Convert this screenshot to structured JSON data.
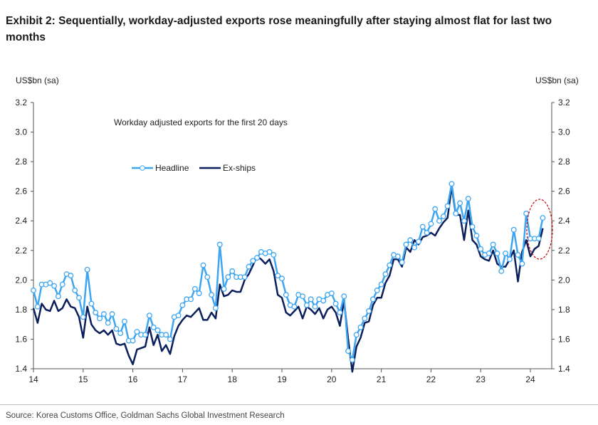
{
  "title": "Exhibit 2: Sequentially, workday-adjusted exports rose meaningfully after staying almost flat for last two months",
  "source": "Source: Korea Customs Office, Goldman Sachs Global Investment Research",
  "chart_data": {
    "type": "line",
    "annotation": "Workday adjusted exports for the first 20 days",
    "ylabel_left": "US$bn (sa)",
    "ylabel_right": "US$bn (sa)",
    "ylim": [
      1.4,
      3.2
    ],
    "yticks": [
      "1.4",
      "1.6",
      "1.8",
      "2.0",
      "2.2",
      "2.4",
      "2.6",
      "2.8",
      "3.0",
      "3.2"
    ],
    "xticks": [
      "14",
      "15",
      "16",
      "17",
      "18",
      "19",
      "20",
      "21",
      "22",
      "23",
      "24"
    ],
    "x_start": "Jan 2014",
    "frequency": "monthly",
    "legend_position": "upper-left",
    "highlight": "last four months circled (red dashed)",
    "colors": {
      "Headline": "#3ea6f0",
      "Ex-ships": "#0b1f5c",
      "highlight": "#cc0000"
    },
    "series": [
      {
        "name": "Headline",
        "values": [
          1.93,
          1.82,
          1.97,
          1.97,
          1.98,
          1.96,
          1.89,
          1.97,
          2.04,
          2.03,
          1.93,
          1.88,
          1.75,
          2.07,
          1.84,
          1.78,
          1.74,
          1.77,
          1.71,
          1.77,
          1.67,
          1.64,
          1.72,
          1.59,
          1.59,
          1.65,
          1.63,
          1.63,
          1.76,
          1.68,
          1.66,
          1.63,
          1.63,
          1.6,
          1.75,
          1.76,
          1.83,
          1.87,
          1.87,
          1.94,
          1.91,
          2.1,
          2.02,
          1.9,
          1.81,
          2.24,
          1.94,
          2.02,
          2.06,
          2.02,
          2.02,
          2.02,
          2.09,
          2.13,
          2.15,
          2.19,
          2.18,
          2.19,
          2.17,
          2.03,
          2.01,
          1.9,
          1.83,
          1.82,
          1.9,
          1.89,
          1.83,
          1.87,
          1.82,
          1.87,
          1.86,
          1.9,
          1.91,
          1.84,
          1.78,
          1.89,
          1.52,
          1.46,
          1.63,
          1.68,
          1.74,
          1.79,
          1.87,
          1.93,
          1.97,
          2.04,
          2.1,
          2.17,
          2.16,
          2.12,
          2.24,
          2.27,
          2.22,
          2.26,
          2.36,
          2.32,
          2.38,
          2.48,
          2.4,
          2.43,
          2.5,
          2.65,
          2.45,
          2.52,
          2.4,
          2.55,
          2.36,
          2.3,
          2.21,
          2.17,
          2.18,
          2.24,
          2.18,
          2.06,
          2.18,
          2.14,
          2.34,
          2.17,
          2.11,
          2.45,
          2.28,
          2.28,
          2.28,
          2.42
        ]
      },
      {
        "name": "Ex-ships",
        "values": [
          1.81,
          1.71,
          1.84,
          1.8,
          1.79,
          1.86,
          1.79,
          1.81,
          1.87,
          1.82,
          1.81,
          1.75,
          1.61,
          1.82,
          1.7,
          1.66,
          1.64,
          1.66,
          1.63,
          1.66,
          1.57,
          1.56,
          1.57,
          1.49,
          1.43,
          1.53,
          1.54,
          1.55,
          1.68,
          1.56,
          1.63,
          1.52,
          1.56,
          1.5,
          1.62,
          1.69,
          1.73,
          1.76,
          1.75,
          1.78,
          1.81,
          1.73,
          1.73,
          1.78,
          1.74,
          1.97,
          1.89,
          1.9,
          1.93,
          1.92,
          1.92,
          2.0,
          2.04,
          2.1,
          2.16,
          2.14,
          2.11,
          2.14,
          2.06,
          1.9,
          1.88,
          1.78,
          1.76,
          1.79,
          1.82,
          1.74,
          1.82,
          1.8,
          1.77,
          1.81,
          1.74,
          1.8,
          1.82,
          1.78,
          1.69,
          1.86,
          1.6,
          1.38,
          1.55,
          1.61,
          1.71,
          1.72,
          1.83,
          1.88,
          1.88,
          1.98,
          2.03,
          2.14,
          2.14,
          2.09,
          2.22,
          2.19,
          2.27,
          2.24,
          2.29,
          2.3,
          2.32,
          2.3,
          2.35,
          2.39,
          2.42,
          2.63,
          2.44,
          2.44,
          2.27,
          2.47,
          2.27,
          2.24,
          2.16,
          2.14,
          2.13,
          2.2,
          2.11,
          2.09,
          2.09,
          2.14,
          2.2,
          1.99,
          2.19,
          2.27,
          2.16,
          2.21,
          2.23,
          2.35
        ]
      }
    ]
  }
}
